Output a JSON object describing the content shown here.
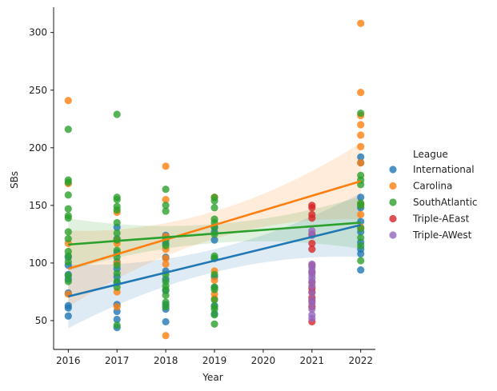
{
  "chart_data": {
    "type": "scatter",
    "xlabel": "Year",
    "ylabel": "SBs",
    "xlim": [
      2015.7,
      2022.3
    ],
    "ylim": [
      25,
      322
    ],
    "xticks": [
      2016,
      2017,
      2018,
      2019,
      2020,
      2021,
      2022
    ],
    "yticks": [
      50,
      100,
      150,
      200,
      250,
      300
    ],
    "legend": {
      "title": "League",
      "placement": "right"
    },
    "series": [
      {
        "name": "International",
        "color": "#1f77b4",
        "points": [
          [
            2016,
            54
          ],
          [
            2016,
            61
          ],
          [
            2016,
            63
          ],
          [
            2016,
            74
          ],
          [
            2016,
            86
          ],
          [
            2016,
            90
          ],
          [
            2016,
            98
          ],
          [
            2016,
            105
          ],
          [
            2017,
            44
          ],
          [
            2017,
            51
          ],
          [
            2017,
            58
          ],
          [
            2017,
            64
          ],
          [
            2017,
            83
          ],
          [
            2017,
            88
          ],
          [
            2017,
            95
          ],
          [
            2017,
            101
          ],
          [
            2017,
            109
          ],
          [
            2017,
            121
          ],
          [
            2017,
            131
          ],
          [
            2018,
            49
          ],
          [
            2018,
            60
          ],
          [
            2018,
            64
          ],
          [
            2018,
            76
          ],
          [
            2018,
            86
          ],
          [
            2018,
            93
          ],
          [
            2018,
            105
          ],
          [
            2018,
            117
          ],
          [
            2018,
            124
          ],
          [
            2019,
            56
          ],
          [
            2019,
            63
          ],
          [
            2019,
            79
          ],
          [
            2019,
            88
          ],
          [
            2019,
            104
          ],
          [
            2019,
            120
          ],
          [
            2019,
            127
          ],
          [
            2019,
            131
          ],
          [
            2022,
            94
          ],
          [
            2022,
            108
          ],
          [
            2022,
            112
          ],
          [
            2022,
            118
          ],
          [
            2022,
            127
          ],
          [
            2022,
            136
          ],
          [
            2022,
            148
          ],
          [
            2022,
            157
          ],
          [
            2022,
            187
          ],
          [
            2022,
            192
          ]
        ],
        "fit": {
          "start": 71,
          "end": 133
        }
      },
      {
        "name": "Carolina",
        "color": "#ff7f0e",
        "points": [
          [
            2016,
            241
          ],
          [
            2016,
            169
          ],
          [
            2016,
            117
          ],
          [
            2016,
            73
          ],
          [
            2017,
            144
          ],
          [
            2017,
            120
          ],
          [
            2017,
            117
          ],
          [
            2017,
            100
          ],
          [
            2017,
            75
          ],
          [
            2017,
            62
          ],
          [
            2018,
            184
          ],
          [
            2018,
            155
          ],
          [
            2018,
            123
          ],
          [
            2018,
            112
          ],
          [
            2018,
            104
          ],
          [
            2018,
            99
          ],
          [
            2018,
            37
          ],
          [
            2019,
            157
          ],
          [
            2019,
            93
          ],
          [
            2019,
            85
          ],
          [
            2019,
            73
          ],
          [
            2019,
            69
          ],
          [
            2022,
            308
          ],
          [
            2022,
            248
          ],
          [
            2022,
            228
          ],
          [
            2022,
            220
          ],
          [
            2022,
            211
          ],
          [
            2022,
            201
          ],
          [
            2022,
            187
          ],
          [
            2022,
            151
          ],
          [
            2022,
            142
          ],
          [
            2022,
            131
          ]
        ],
        "fit": {
          "start": 95,
          "end": 171
        }
      },
      {
        "name": "SouthAtlantic",
        "color": "#2ca02c",
        "points": [
          [
            2016,
            216
          ],
          [
            2016,
            172
          ],
          [
            2016,
            170
          ],
          [
            2016,
            159
          ],
          [
            2016,
            147
          ],
          [
            2016,
            141
          ],
          [
            2016,
            139
          ],
          [
            2016,
            127
          ],
          [
            2016,
            121
          ],
          [
            2016,
            110
          ],
          [
            2016,
            106
          ],
          [
            2016,
            101
          ],
          [
            2016,
            89
          ],
          [
            2016,
            84
          ],
          [
            2017,
            229
          ],
          [
            2017,
            157
          ],
          [
            2017,
            155
          ],
          [
            2017,
            149
          ],
          [
            2017,
            146
          ],
          [
            2017,
            135
          ],
          [
            2017,
            126
          ],
          [
            2017,
            120
          ],
          [
            2017,
            111
          ],
          [
            2017,
            105
          ],
          [
            2017,
            98
          ],
          [
            2017,
            91
          ],
          [
            2017,
            84
          ],
          [
            2017,
            79
          ],
          [
            2017,
            46
          ],
          [
            2018,
            164
          ],
          [
            2018,
            150
          ],
          [
            2018,
            145
          ],
          [
            2018,
            120
          ],
          [
            2018,
            115
          ],
          [
            2018,
            90
          ],
          [
            2018,
            84
          ],
          [
            2018,
            80
          ],
          [
            2018,
            77
          ],
          [
            2018,
            72
          ],
          [
            2018,
            66
          ],
          [
            2018,
            62
          ],
          [
            2019,
            157
          ],
          [
            2019,
            154
          ],
          [
            2019,
            148
          ],
          [
            2019,
            138
          ],
          [
            2019,
            135
          ],
          [
            2019,
            131
          ],
          [
            2019,
            125
          ],
          [
            2019,
            106
          ],
          [
            2019,
            104
          ],
          [
            2019,
            90
          ],
          [
            2019,
            79
          ],
          [
            2019,
            77
          ],
          [
            2019,
            68
          ],
          [
            2019,
            62
          ],
          [
            2019,
            60
          ],
          [
            2019,
            55
          ],
          [
            2019,
            47
          ],
          [
            2022,
            230
          ],
          [
            2022,
            176
          ],
          [
            2022,
            172
          ],
          [
            2022,
            168
          ],
          [
            2022,
            152
          ],
          [
            2022,
            150
          ],
          [
            2022,
            130
          ],
          [
            2022,
            122
          ],
          [
            2022,
            115
          ],
          [
            2022,
            102
          ]
        ],
        "fit": {
          "start": 116,
          "end": 135
        }
      },
      {
        "name": "Triple-AEast",
        "color": "#d62728",
        "points": [
          [
            2021,
            150
          ],
          [
            2021,
            148
          ],
          [
            2021,
            142
          ],
          [
            2021,
            139
          ],
          [
            2021,
            125
          ],
          [
            2021,
            117
          ],
          [
            2021,
            112
          ],
          [
            2021,
            98
          ],
          [
            2021,
            92
          ],
          [
            2021,
            83
          ],
          [
            2021,
            78
          ],
          [
            2021,
            75
          ],
          [
            2021,
            70
          ],
          [
            2021,
            67
          ],
          [
            2021,
            62
          ],
          [
            2021,
            49
          ]
        ],
        "fit": null
      },
      {
        "name": "Triple-AWest",
        "color": "#9467bd",
        "points": [
          [
            2021,
            128
          ],
          [
            2021,
            124
          ],
          [
            2021,
            99
          ],
          [
            2021,
            96
          ],
          [
            2021,
            93
          ],
          [
            2021,
            90
          ],
          [
            2021,
            87
          ],
          [
            2021,
            84
          ],
          [
            2021,
            80
          ],
          [
            2021,
            74
          ],
          [
            2021,
            68
          ],
          [
            2021,
            65
          ],
          [
            2021,
            60
          ],
          [
            2021,
            55
          ],
          [
            2021,
            52
          ]
        ],
        "fit": null
      }
    ]
  }
}
